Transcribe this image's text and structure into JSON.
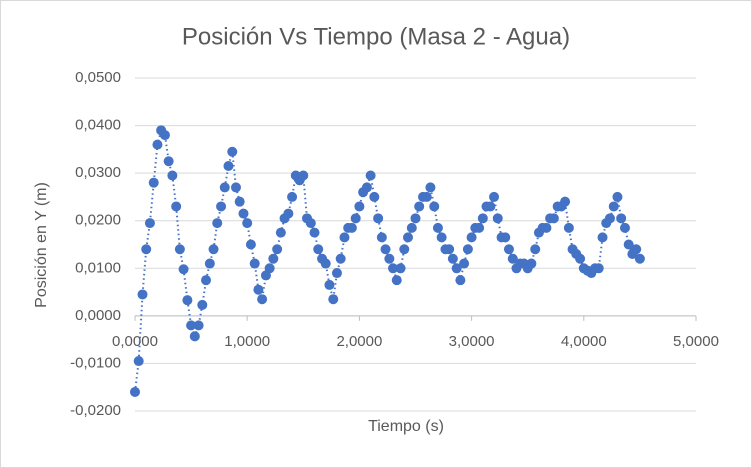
{
  "chart_data": {
    "type": "scatter",
    "title": "Posición Vs Tiempo (Masa 2 - Agua)",
    "x_label": "Tiempo (s)",
    "y_label": "Posición en Y (m)",
    "xlim": [
      0,
      5
    ],
    "ylim": [
      -0.02,
      0.05
    ],
    "xticks": [
      {
        "value": 0,
        "label": "0,0000"
      },
      {
        "value": 1,
        "label": "1,0000"
      },
      {
        "value": 2,
        "label": "2,0000"
      },
      {
        "value": 3,
        "label": "3,0000"
      },
      {
        "value": 4,
        "label": "4,0000"
      },
      {
        "value": 5,
        "label": "5,0000"
      }
    ],
    "yticks": [
      {
        "value": -0.02,
        "label": "-0,0200"
      },
      {
        "value": -0.01,
        "label": "-0,0100"
      },
      {
        "value": 0,
        "label": "0,0000"
      },
      {
        "value": 0.01,
        "label": "0,0100"
      },
      {
        "value": 0.02,
        "label": "0,0200"
      },
      {
        "value": 0.03,
        "label": "0,0300"
      },
      {
        "value": 0.04,
        "label": "0,0400"
      },
      {
        "value": 0.05,
        "label": "0,0500"
      }
    ],
    "grid": true,
    "color": "#4472c4",
    "line_style": "dotted",
    "x": [
      0,
      0.033,
      0.067,
      0.1,
      0.133,
      0.167,
      0.2,
      0.233,
      0.267,
      0.3,
      0.333,
      0.367,
      0.4,
      0.433,
      0.467,
      0.5,
      0.533,
      0.567,
      0.6,
      0.633,
      0.667,
      0.7,
      0.733,
      0.767,
      0.8,
      0.833,
      0.867,
      0.9,
      0.933,
      0.967,
      1,
      1.033,
      1.067,
      1.1,
      1.133,
      1.167,
      1.2,
      1.233,
      1.267,
      1.3,
      1.333,
      1.367,
      1.4,
      1.433,
      1.467,
      1.5,
      1.533,
      1.567,
      1.6,
      1.633,
      1.667,
      1.7,
      1.733,
      1.767,
      1.8,
      1.833,
      1.867,
      1.9,
      1.933,
      1.967,
      2,
      2.033,
      2.067,
      2.1,
      2.133,
      2.167,
      2.2,
      2.233,
      2.267,
      2.3,
      2.333,
      2.367,
      2.4,
      2.433,
      2.467,
      2.5,
      2.533,
      2.567,
      2.6,
      2.633,
      2.667,
      2.7,
      2.733,
      2.767,
      2.8,
      2.833,
      2.867,
      2.9,
      2.933,
      2.967,
      3,
      3.033,
      3.067,
      3.1,
      3.133,
      3.167,
      3.2,
      3.233,
      3.267,
      3.3,
      3.333,
      3.367,
      3.4,
      3.433,
      3.467,
      3.5,
      3.533,
      3.567,
      3.6,
      3.633,
      3.667,
      3.7,
      3.733,
      3.767,
      3.8,
      3.833,
      3.867,
      3.9,
      3.933,
      3.967,
      4,
      4.033,
      4.067,
      4.1,
      4.133,
      4.167,
      4.2,
      4.233,
      4.267,
      4.3,
      4.333,
      4.367,
      4.4,
      4.433,
      4.467,
      4.5
    ],
    "values": [
      -0.016,
      -0.0095,
      0.0045,
      0.014,
      0.0195,
      0.028,
      0.036,
      0.039,
      0.038,
      0.0325,
      0.0295,
      0.023,
      0.014,
      0.0098,
      0.0033,
      -0.002,
      -0.0043,
      -0.002,
      0.0023,
      0.0075,
      0.011,
      0.014,
      0.0195,
      0.023,
      0.027,
      0.0315,
      0.0345,
      0.027,
      0.024,
      0.0215,
      0.0195,
      0.015,
      0.011,
      0.0055,
      0.0035,
      0.0085,
      0.01,
      0.012,
      0.014,
      0.0175,
      0.0205,
      0.0215,
      0.025,
      0.0295,
      0.0285,
      0.0295,
      0.0205,
      0.0195,
      0.0175,
      0.014,
      0.012,
      0.011,
      0.0065,
      0.0035,
      0.009,
      0.012,
      0.0165,
      0.0185,
      0.0185,
      0.0205,
      0.023,
      0.026,
      0.027,
      0.0295,
      0.025,
      0.0205,
      0.0165,
      0.014,
      0.012,
      0.01,
      0.0075,
      0.01,
      0.014,
      0.0165,
      0.0185,
      0.0205,
      0.023,
      0.025,
      0.025,
      0.027,
      0.023,
      0.0185,
      0.0165,
      0.014,
      0.014,
      0.012,
      0.01,
      0.0075,
      0.011,
      0.014,
      0.0165,
      0.0185,
      0.0185,
      0.0205,
      0.023,
      0.023,
      0.025,
      0.0205,
      0.0165,
      0.0165,
      0.014,
      0.012,
      0.01,
      0.011,
      0.011,
      0.01,
      0.011,
      0.014,
      0.0175,
      0.0185,
      0.0185,
      0.0205,
      0.0205,
      0.023,
      0.023,
      0.024,
      0.0185,
      0.014,
      0.013,
      0.012,
      0.01,
      0.0095,
      0.009,
      0.01,
      0.01,
      0.0165,
      0.0195,
      0.0205,
      0.023,
      0.025,
      0.0205,
      0.0185,
      0.015,
      0.013,
      0.014,
      0.012
    ]
  }
}
